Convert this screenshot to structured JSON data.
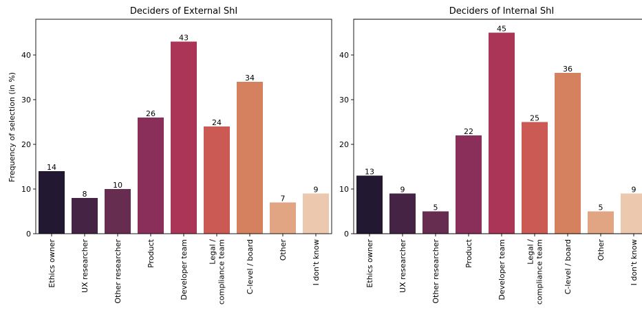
{
  "chart_data": [
    {
      "type": "bar",
      "title": "Deciders of External ShI",
      "xlabel": "",
      "ylabel": "Frequency of selection (in %)",
      "categories": [
        "Ethics owner",
        "UX researcher",
        "Other researcher",
        "Product",
        "Developer team",
        [
          "Legal /",
          "compliance team"
        ],
        "C-level / board",
        "Other",
        "I don't know"
      ],
      "values": [
        14,
        8,
        10,
        26,
        43,
        24,
        34,
        7,
        9
      ],
      "ylim": [
        0,
        48
      ],
      "yticks": [
        0,
        10,
        20,
        30,
        40
      ],
      "grid": false,
      "colors": [
        "#221831",
        "#442344",
        "#662d50",
        "#8a2f59",
        "#ab3557",
        "#cb5954",
        "#d5805e",
        "#e2a583",
        "#ecc8ae"
      ]
    },
    {
      "type": "bar",
      "title": "Deciders of Internal ShI",
      "xlabel": "",
      "ylabel": "",
      "categories": [
        "Ethics owner",
        "UX researcher",
        "Other researcher",
        "Product",
        "Developer team",
        [
          "Legal /",
          "compliance team"
        ],
        "C-level / board",
        "Other",
        "I don't know"
      ],
      "values": [
        13,
        9,
        5,
        22,
        45,
        25,
        36,
        5,
        9
      ],
      "ylim": [
        0,
        48
      ],
      "yticks": [
        0,
        10,
        20,
        30,
        40
      ],
      "grid": false,
      "colors": [
        "#221831",
        "#442344",
        "#662d50",
        "#8a2f59",
        "#ab3557",
        "#cb5954",
        "#d5805e",
        "#e2a583",
        "#ecc8ae"
      ]
    }
  ]
}
